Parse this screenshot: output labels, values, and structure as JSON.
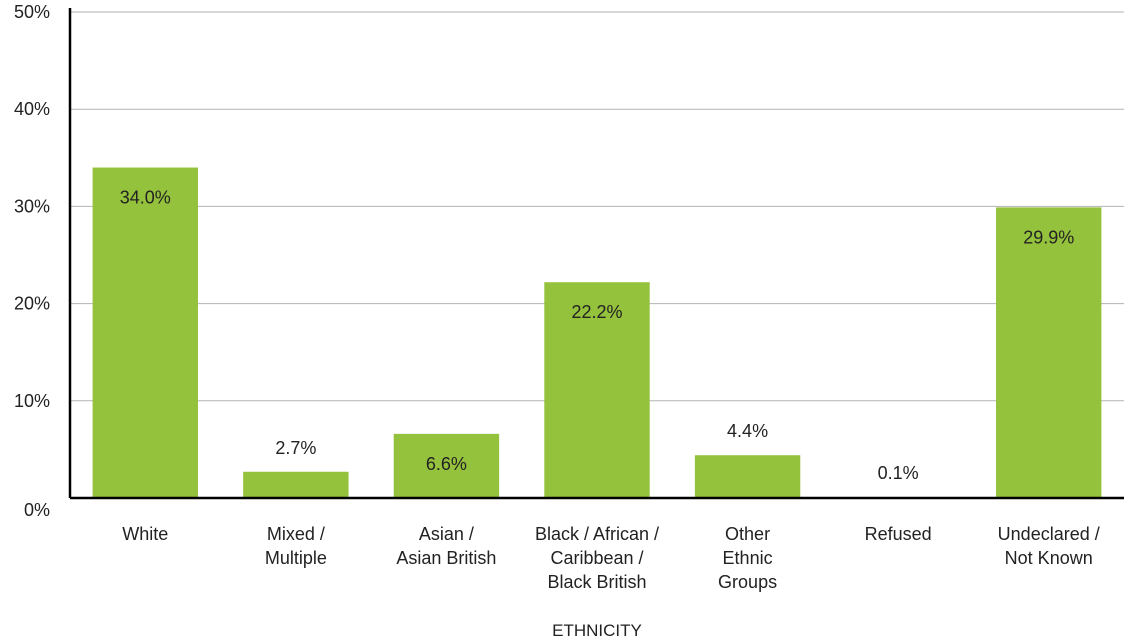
{
  "chart_data": {
    "type": "bar",
    "categories": [
      [
        "White"
      ],
      [
        "Mixed /",
        "Multiple"
      ],
      [
        "Asian /",
        "Asian British"
      ],
      [
        "Black / African /",
        "Caribbean /",
        "Black British"
      ],
      [
        "Other",
        "Ethnic",
        "Groups"
      ],
      [
        "Refused"
      ],
      [
        "Undeclared /",
        "Not Known"
      ]
    ],
    "values": [
      34.0,
      2.7,
      6.6,
      22.2,
      4.4,
      0.1,
      29.9
    ],
    "value_labels": [
      "34.0%",
      "2.7%",
      "6.6%",
      "22.2%",
      "4.4%",
      "0.1%",
      "29.9%"
    ],
    "yticks": [
      "0%",
      "10%",
      "20%",
      "30%",
      "40%",
      "50%"
    ],
    "ylim": [
      0,
      50
    ],
    "xlabel": "ETHNICITY",
    "ylabel": "",
    "title": "",
    "grid": true,
    "legend": "none",
    "bar_color": "#95c23d",
    "grid_color": "#b3b3b3",
    "axis_color": "#000000"
  }
}
